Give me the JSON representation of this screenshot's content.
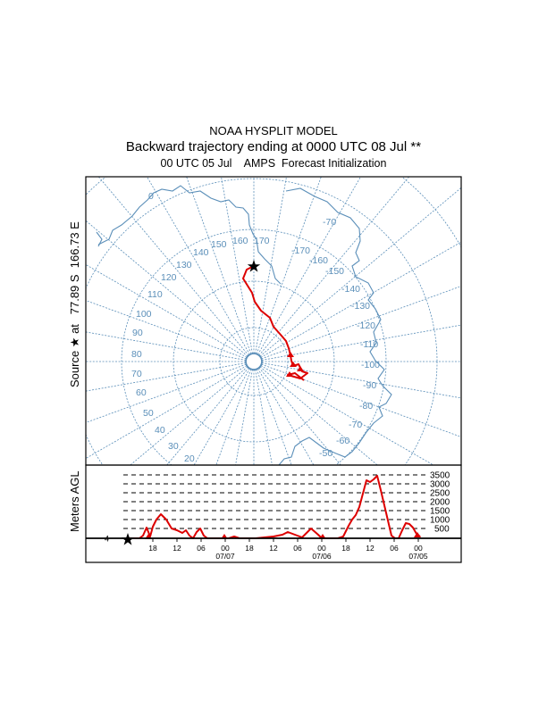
{
  "header": {
    "line1": "NOAA HYSPLIT MODEL",
    "line2": "Backward trajectory ending at 0000 UTC 08 Jul **",
    "line3": "00 UTC 05 Jul    AMPS  Forecast Initialization"
  },
  "map": {
    "source_label": "Source ★ at   77.89 S  166.73 E",
    "longitude_labels": [
      "0",
      "20",
      "30",
      "40",
      "50",
      "60",
      "70",
      "80",
      "90",
      "100",
      "110",
      "120",
      "130",
      "140",
      "150",
      "160",
      "170",
      "-170",
      "-160",
      "-150",
      "-140",
      "-130",
      "-120",
      "-110",
      "-100",
      "-90",
      "-80",
      "-70",
      "-60",
      "-50",
      "-70"
    ],
    "colors": {
      "grid": "#5b8fb9",
      "coast": "#5b8fb9",
      "trajectory": "#dd0000"
    }
  },
  "profile": {
    "ylabel": "Meters AGL",
    "height_labels": [
      "3500",
      "3000",
      "2500",
      "2000",
      "1500",
      "1000",
      "500"
    ],
    "ground_label": "4",
    "hour_labels": [
      "18",
      "12",
      "06",
      "00",
      "18",
      "12",
      "06",
      "00",
      "18",
      "12",
      "06",
      "00"
    ],
    "date_labels": [
      "07/07",
      "07/06",
      "07/05"
    ]
  }
}
